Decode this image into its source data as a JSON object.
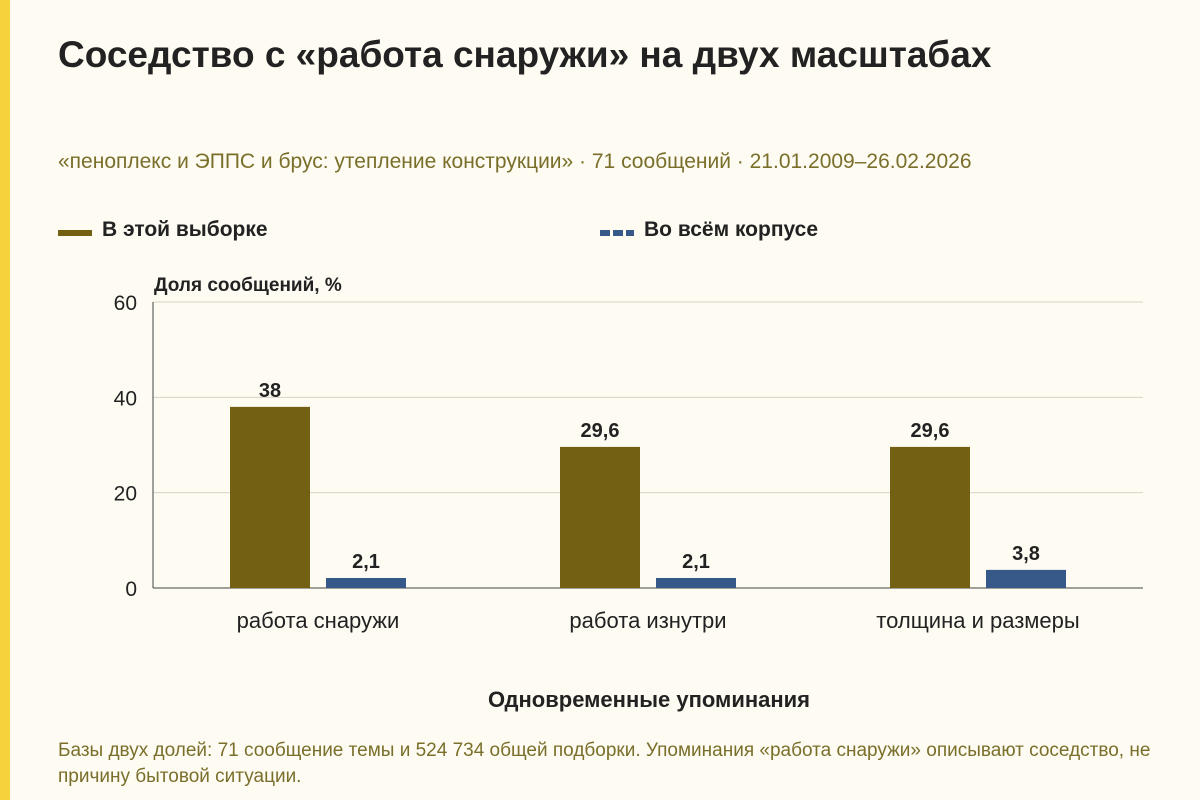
{
  "title": "Соседство с «работа снаружи» на двух масштабах",
  "subtitle": "«пеноплекс и ЭППС и брус: утепление конструкции» · 71 сообщений · 21.01.2009–26.02.2026",
  "footnote": "Базы двух долей: 71 сообщение темы и 524 734 общей подборки. Упоминания «работа снаружи» описывают соседство, не причину бытовой ситуации.",
  "colors": {
    "accent": "#f6d33c",
    "series_sample": "#736012",
    "series_corpus": "#36598a",
    "background": "#fdfbf2"
  },
  "chart_data": {
    "type": "bar",
    "title": "",
    "xlabel": "Одновременные упоминания",
    "ylabel": "Доля сообщений, %",
    "ylim": [
      0,
      60
    ],
    "yticks": [
      0,
      20,
      40,
      60
    ],
    "grid": true,
    "legend_position": "top",
    "categories": [
      "работа снаружи",
      "работа изнутри",
      "толщина и размеры"
    ],
    "series": [
      {
        "name": "В этой выборке",
        "values": [
          38,
          29.6,
          29.6
        ],
        "labels": [
          "38",
          "29,6",
          "29,6"
        ]
      },
      {
        "name": "Во всём корпусе",
        "values": [
          2.1,
          2.1,
          3.8
        ],
        "labels": [
          "2,1",
          "2,1",
          "3,8"
        ]
      }
    ]
  }
}
